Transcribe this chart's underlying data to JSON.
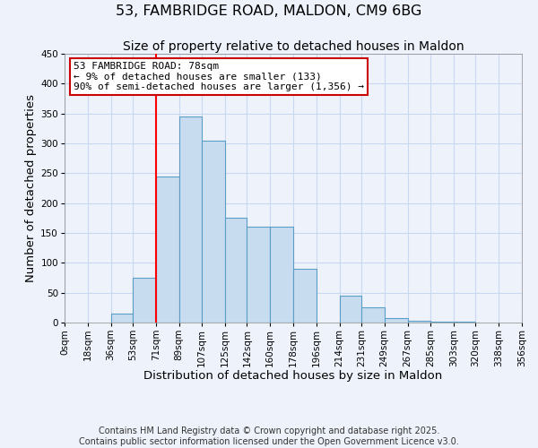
{
  "title": "53, FAMBRIDGE ROAD, MALDON, CM9 6BG",
  "subtitle": "Size of property relative to detached houses in Maldon",
  "xlabel": "Distribution of detached houses by size in Maldon",
  "ylabel": "Number of detached properties",
  "bin_edges": [
    0,
    18,
    36,
    53,
    71,
    89,
    107,
    125,
    142,
    160,
    178,
    196,
    214,
    231,
    249,
    267,
    285,
    303,
    320,
    338,
    356
  ],
  "bar_heights": [
    0,
    0,
    15,
    75,
    245,
    345,
    305,
    175,
    160,
    160,
    90,
    0,
    45,
    25,
    8,
    3,
    2,
    1,
    0,
    0
  ],
  "bar_color": "#c8dcf0",
  "bar_edge_color": "#5a9ec8",
  "bar_edge_width": 0.8,
  "red_line_x": 71,
  "ylim": [
    0,
    450
  ],
  "yticks": [
    0,
    50,
    100,
    150,
    200,
    250,
    300,
    350,
    400,
    450
  ],
  "xlabels": [
    "0sqm",
    "18sqm",
    "36sqm",
    "53sqm",
    "71sqm",
    "89sqm",
    "107sqm",
    "125sqm",
    "142sqm",
    "160sqm",
    "178sqm",
    "196sqm",
    "214sqm",
    "231sqm",
    "249sqm",
    "267sqm",
    "285sqm",
    "303sqm",
    "320sqm",
    "338sqm",
    "356sqm"
  ],
  "annotation_line1": "53 FAMBRIDGE ROAD: 78sqm",
  "annotation_line2": "← 9% of detached houses are smaller (133)",
  "annotation_line3": "90% of semi-detached houses are larger (1,356) →",
  "annotation_box_color": "#ffffff",
  "annotation_box_edge_color": "#cc0000",
  "footer_line1": "Contains HM Land Registry data © Crown copyright and database right 2025.",
  "footer_line2": "Contains public sector information licensed under the Open Government Licence v3.0.",
  "background_color": "#eef2fb",
  "grid_color": "#c8d8f0",
  "title_fontsize": 11.5,
  "subtitle_fontsize": 10,
  "axis_label_fontsize": 9.5,
  "tick_fontsize": 7.5,
  "footer_fontsize": 7,
  "annotation_fontsize": 8
}
